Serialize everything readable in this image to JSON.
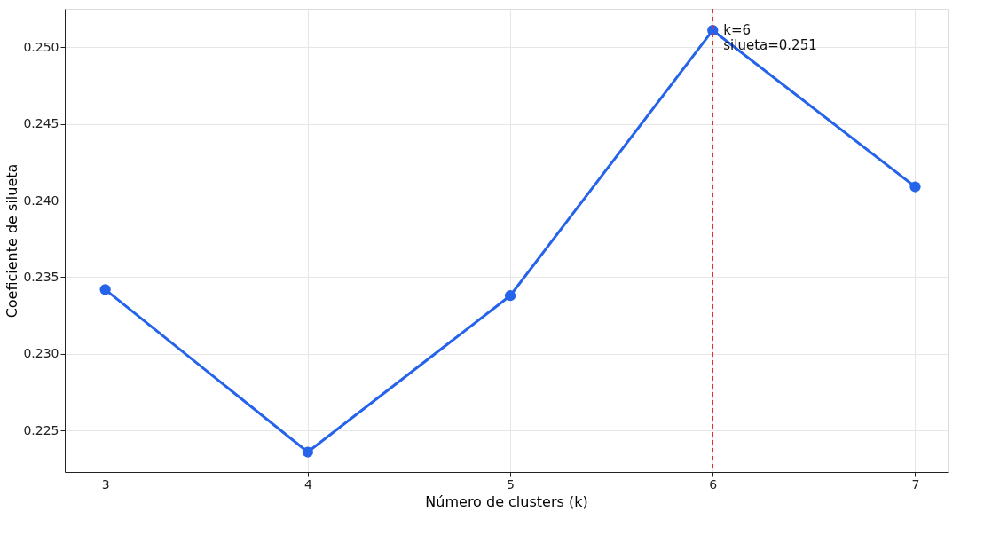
{
  "chart_data": {
    "type": "line",
    "xlabel": "Número de clusters (k)",
    "ylabel": "Coeficiente de silueta",
    "x": [
      3,
      4,
      5,
      6,
      7
    ],
    "series": [
      {
        "color": "#2563eb",
        "values": [
          0.2342,
          0.2236,
          0.2338,
          0.2511,
          0.2409
        ]
      }
    ],
    "xlim": [
      2.8,
      7.16
    ],
    "xticks": [
      3,
      4,
      5,
      6,
      7
    ],
    "ylim": [
      0.2223,
      0.2525
    ],
    "yticks": [
      0.225,
      {
        "value": 0.23,
        "label": "0.230"
      },
      0.235,
      {
        "value": 0.24,
        "label": "0.240"
      },
      0.245,
      {
        "value": 0.25,
        "label": "0.250"
      }
    ],
    "ref_lines": [
      {
        "axis": "x",
        "value": 6,
        "color": "#e03030",
        "line_style": "dashed"
      }
    ],
    "annotations": [
      {
        "text": "k=6\nsilueta=0.251",
        "x": 6,
        "y": 0.2511
      }
    ],
    "grid": true,
    "marker": "circle",
    "line_style": "solid"
  }
}
